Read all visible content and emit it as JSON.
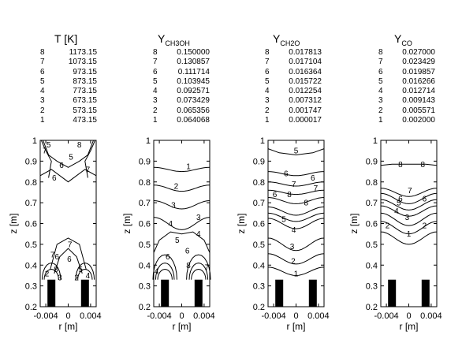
{
  "axis": {
    "zlabel": "z [m]",
    "rlabel": "r [m]",
    "zticks": [
      "0.2",
      "0.3",
      "0.4",
      "0.5",
      "0.6",
      "0.7",
      "0.8",
      "0.9",
      "1"
    ],
    "rticks": [
      "-0.004",
      "0",
      "0.004"
    ]
  },
  "panels": [
    {
      "id": "T",
      "title_main": "T [K]",
      "title_sub": "",
      "levels": [
        {
          "level": "8",
          "value": "1173.15"
        },
        {
          "level": "7",
          "value": "1073.15"
        },
        {
          "level": "6",
          "value": "973.15"
        },
        {
          "level": "5",
          "value": "873.15"
        },
        {
          "level": "4",
          "value": "773.15"
        },
        {
          "level": "3",
          "value": "673.15"
        },
        {
          "level": "2",
          "value": "573.15"
        },
        {
          "level": "1",
          "value": "473.15"
        }
      ],
      "contour_labels": [
        "5",
        "7",
        "8",
        "6",
        "7",
        "5",
        "6",
        "7",
        "6",
        "6",
        "7",
        "2",
        "5",
        "8",
        "4",
        "2",
        "3"
      ]
    },
    {
      "id": "CH3OH",
      "title_main": "Y",
      "title_sub": "CH3OH",
      "levels": [
        {
          "level": "8",
          "value": "0.150000"
        },
        {
          "level": "7",
          "value": "0.130857"
        },
        {
          "level": "6",
          "value": "0.111714"
        },
        {
          "level": "5",
          "value": "0.103945"
        },
        {
          "level": "4",
          "value": "0.092571"
        },
        {
          "level": "3",
          "value": "0.073429"
        },
        {
          "level": "2",
          "value": "0.065356"
        },
        {
          "level": "1",
          "value": "0.064068"
        }
      ],
      "contour_labels": [
        "1",
        "2",
        "3",
        "3",
        "4",
        "4",
        "5",
        "6",
        "6",
        "4",
        "7",
        "8"
      ]
    },
    {
      "id": "CH2O",
      "title_main": "Y",
      "title_sub": "CH2O",
      "levels": [
        {
          "level": "8",
          "value": "0.017813"
        },
        {
          "level": "7",
          "value": "0.017104"
        },
        {
          "level": "6",
          "value": "0.016364"
        },
        {
          "level": "5",
          "value": "0.015722"
        },
        {
          "level": "4",
          "value": "0.012254"
        },
        {
          "level": "3",
          "value": "0.007312"
        },
        {
          "level": "2",
          "value": "0.001747"
        },
        {
          "level": "1",
          "value": "0.000017"
        }
      ],
      "contour_labels": [
        "5",
        "6",
        "6",
        "7",
        "7",
        "6",
        "8",
        "8",
        "5",
        "4",
        "3",
        "2",
        "1"
      ]
    },
    {
      "id": "CO",
      "title_main": "Y",
      "title_sub": "CO",
      "levels": [
        {
          "level": "8",
          "value": "0.027000"
        },
        {
          "level": "7",
          "value": "0.023429"
        },
        {
          "level": "6",
          "value": "0.019857"
        },
        {
          "level": "5",
          "value": "0.016266"
        },
        {
          "level": "4",
          "value": "0.012714"
        },
        {
          "level": "3",
          "value": "0.009143"
        },
        {
          "level": "2",
          "value": "0.005571"
        },
        {
          "level": "1",
          "value": "0.002000"
        }
      ],
      "contour_labels": [
        "8",
        "8",
        "7",
        "6",
        "6",
        "5",
        "4",
        "3",
        "2",
        "2",
        "1"
      ]
    }
  ]
}
